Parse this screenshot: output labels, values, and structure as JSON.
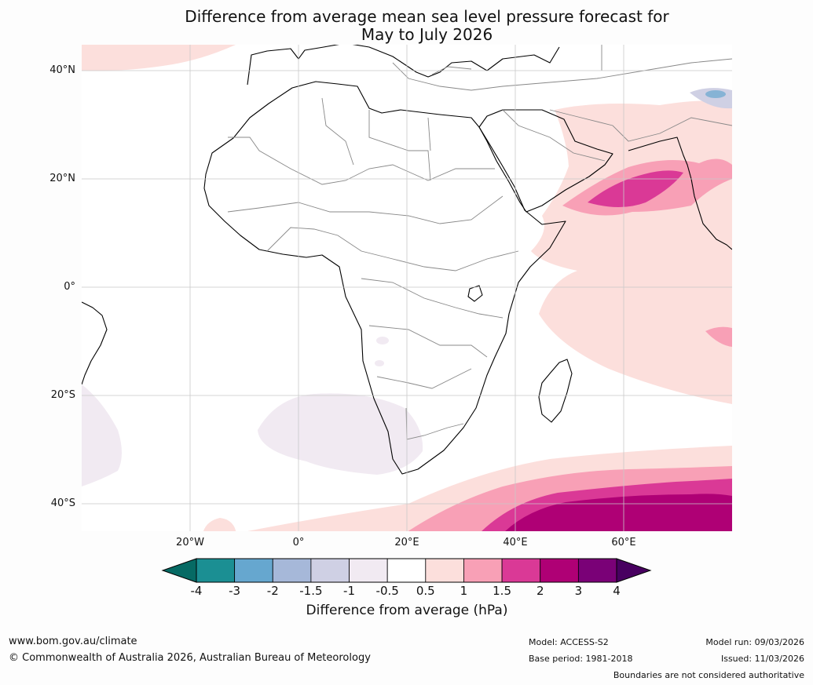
{
  "title": {
    "line1": "Difference from average mean sea level pressure forecast for",
    "line2": "May to July 2026"
  },
  "map": {
    "lat_labels": [
      "40°N",
      "20°N",
      "0°",
      "20°S",
      "40°S"
    ],
    "lon_labels": [
      "20°W",
      "0°",
      "20°E",
      "40°E",
      "60°E"
    ]
  },
  "colorbar": {
    "ticks": [
      "-4",
      "-3",
      "-2",
      "-1.5",
      "-1",
      "-0.5",
      "0.5",
      "1",
      "1.5",
      "2",
      "3",
      "4"
    ],
    "colors": [
      "#1b8f93",
      "#66a7cf",
      "#a6b8d9",
      "#cfd0e4",
      "#f1eaf2",
      "#ffffff",
      "#fcdfdc",
      "#f8a0b6",
      "#da3996",
      "#af0075",
      "#7a0177"
    ],
    "under_color": "#066a64",
    "over_color": "#480060",
    "label": "Difference from average (hPa)"
  },
  "footer": {
    "website": "www.bom.gov.au/climate",
    "copyright": "© Commonwealth of Australia 2026, Australian Bureau of Meteorology",
    "model": "Model: ACCESS-S2",
    "base_period": "Base period: 1981-2018",
    "model_run": "Model run: 09/03/2026",
    "issued": "Issued: 11/03/2026",
    "disclaimer": "Boundaries are not considered authoritative"
  }
}
